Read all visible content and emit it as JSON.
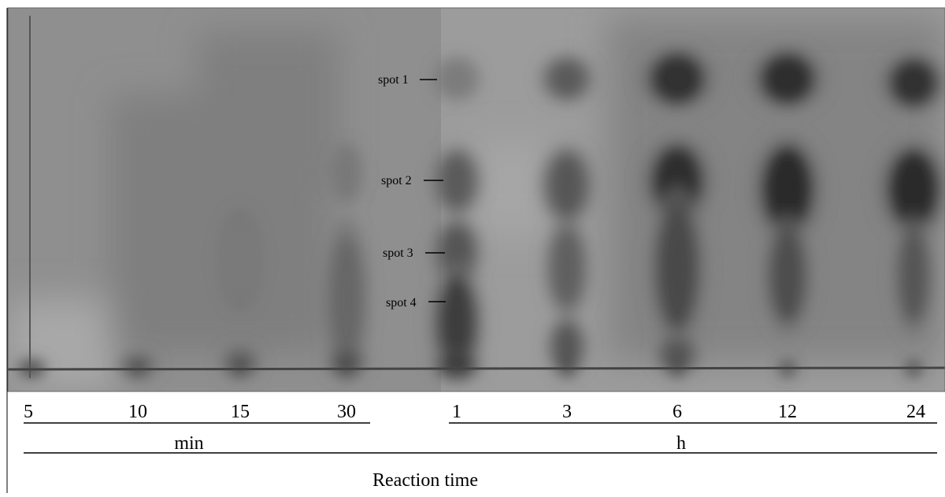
{
  "plate": {
    "spots": [
      "spot 1",
      "spot 2",
      "spot 3",
      "spot 4"
    ]
  },
  "lanes": [
    "5",
    "10",
    "15",
    "30",
    "1",
    "3",
    "6",
    "12",
    "24"
  ],
  "units": [
    "min",
    "h"
  ],
  "axis_title": "Reaction time"
}
